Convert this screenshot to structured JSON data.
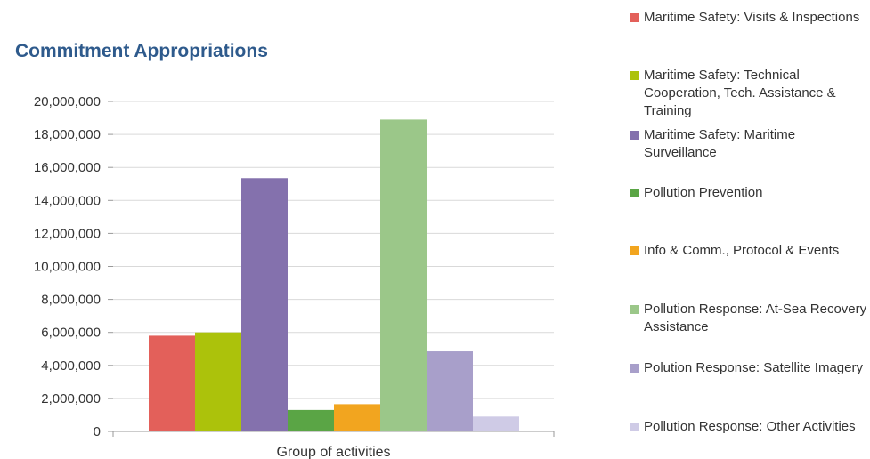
{
  "chart_data": {
    "type": "bar",
    "title": "Commitment Appropriations",
    "xlabel": "Group of activities",
    "ylabel": "",
    "ylim": [
      0,
      20000000
    ],
    "yticks": [
      "20,000,000",
      "18,000,000",
      "16,000,000",
      "14,000,000",
      "12,000,000",
      "10,000,000",
      "8,000,000",
      "6,000,000",
      "4,000,000",
      "2,000,000",
      "0"
    ],
    "grid": true,
    "legend_position": "right",
    "series": [
      {
        "name": "Maritime Safety: Visits & Inspections",
        "value": 5800000,
        "color": "#e3605a"
      },
      {
        "name": "Maritime Safety: Technical Cooperation, Tech. Assistance & Training",
        "value": 6000000,
        "color": "#acc20b"
      },
      {
        "name": "Maritime Safety: Maritime Surveillance",
        "value": 15350000,
        "color": "#8471ad"
      },
      {
        "name": "Pollution Prevention",
        "value": 1300000,
        "color": "#5aa545"
      },
      {
        "name": "Info & Comm., Protocol & Events",
        "value": 1650000,
        "color": "#f2a51f"
      },
      {
        "name": "Pollution Response: At-Sea Recovery Assistance",
        "value": 18900000,
        "color": "#9bc789"
      },
      {
        "name": "Polution Response: Satellite Imagery",
        "value": 4850000,
        "color": "#a89fca"
      },
      {
        "name": "Pollution Response: Other Activities",
        "value": 900000,
        "color": "#cfcbe6"
      }
    ]
  }
}
